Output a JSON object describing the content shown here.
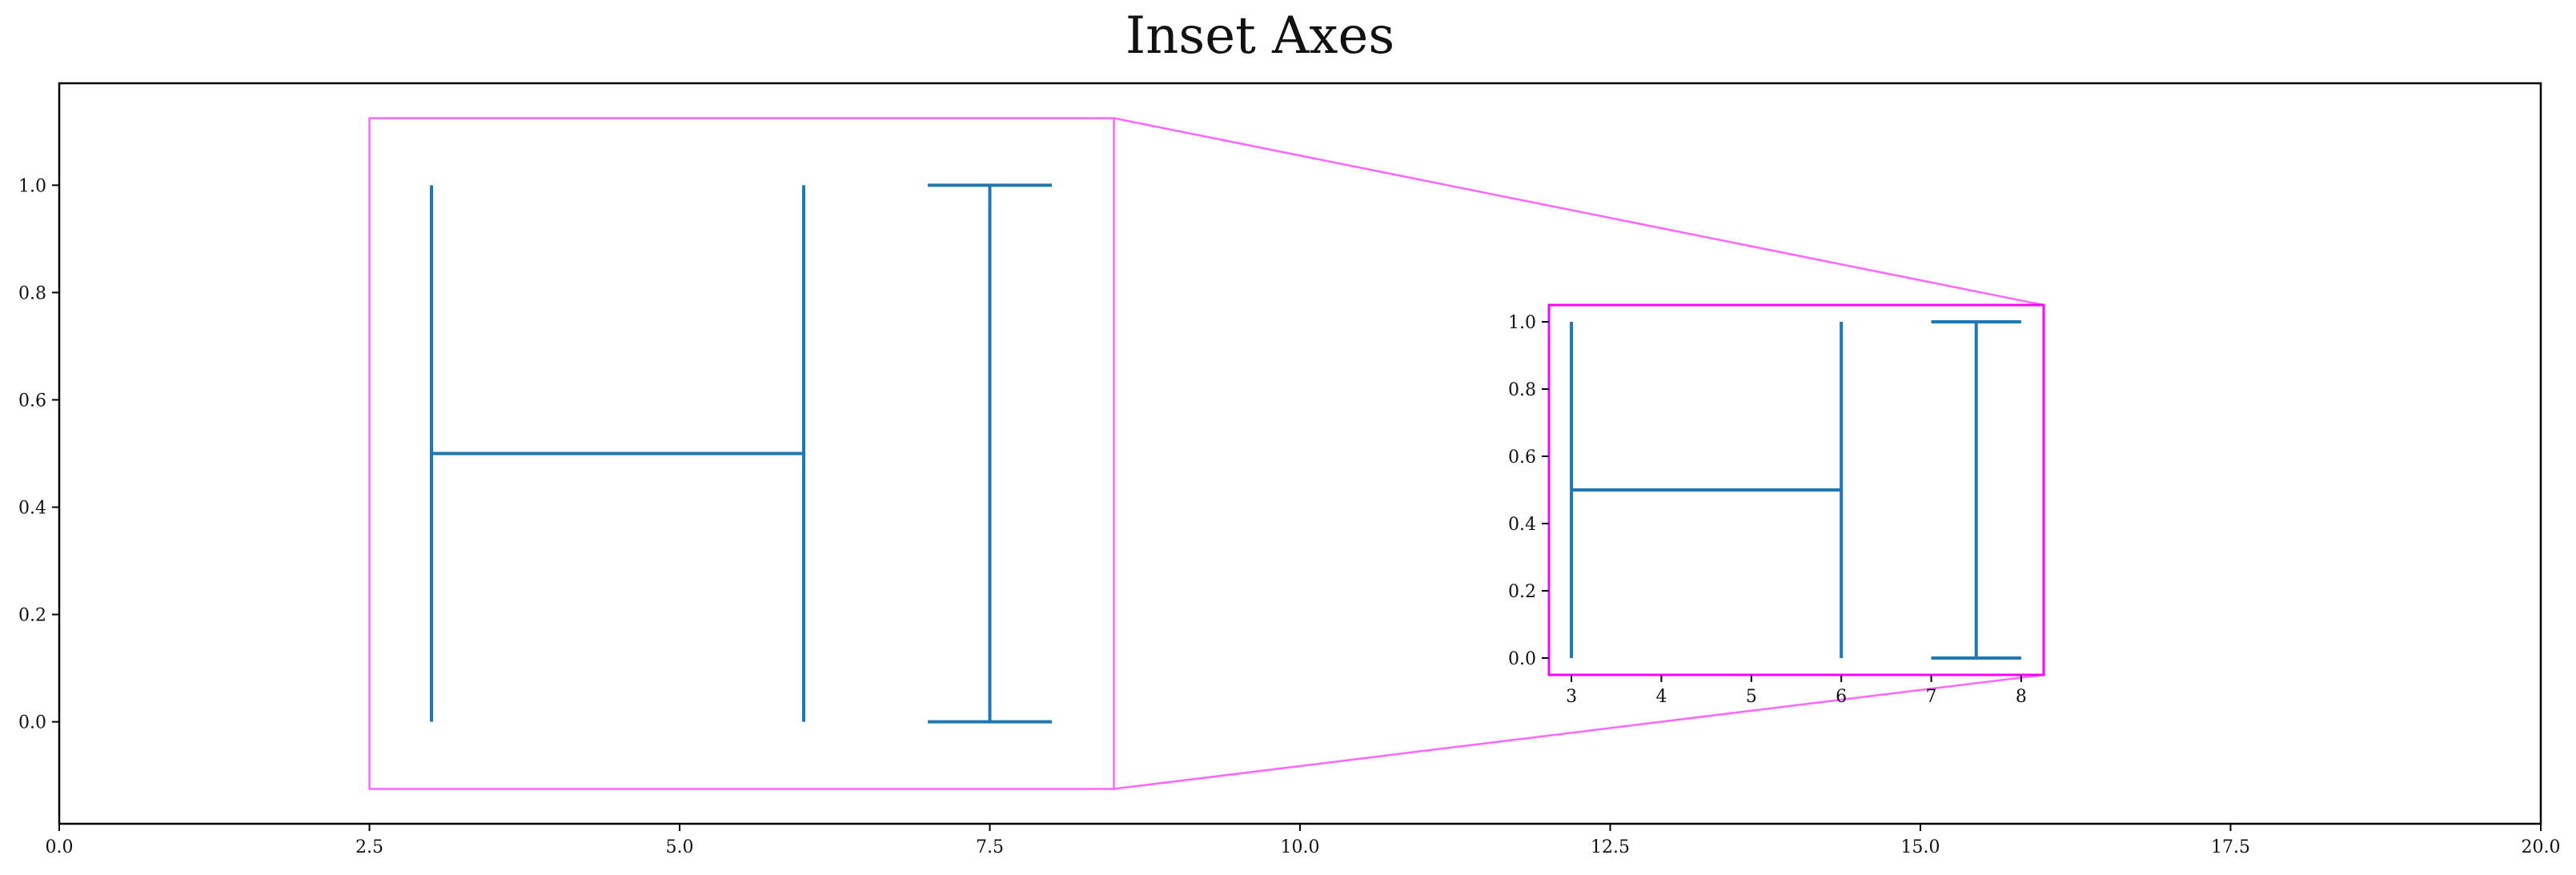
{
  "chart_data": {
    "type": "line",
    "title": "Inset Axes",
    "series": [
      {
        "segments": [
          {
            "x": [
              3,
              3
            ],
            "y": [
              0,
              1
            ]
          },
          {
            "x": [
              3,
              6
            ],
            "y": [
              0.5,
              0.5
            ]
          },
          {
            "x": [
              6,
              6
            ],
            "y": [
              0,
              1
            ]
          },
          {
            "x": [
              7,
              8
            ],
            "y": [
              1,
              1
            ]
          },
          {
            "x": [
              7.5,
              7.5
            ],
            "y": [
              0,
              1
            ]
          },
          {
            "x": [
              7,
              8
            ],
            "y": [
              0,
              0
            ]
          }
        ]
      }
    ],
    "main_axes": {
      "xlim": [
        0,
        20
      ],
      "ylim": [
        -0.19,
        1.19
      ],
      "xticks": [
        0,
        2.5,
        5,
        7.5,
        10,
        12.5,
        15,
        17.5,
        20
      ],
      "xtick_labels": [
        "0.0",
        "2.5",
        "5.0",
        "7.5",
        "10.0",
        "12.5",
        "15.0",
        "17.5",
        "20.0"
      ],
      "yticks": [
        0,
        0.2,
        0.4,
        0.6,
        0.8,
        1.0
      ],
      "ytick_labels": [
        "0.0",
        "0.2",
        "0.4",
        "0.6",
        "0.8",
        "1.0"
      ]
    },
    "zoom_region": {
      "xlim": [
        2.5,
        8.5
      ],
      "ylim": [
        -0.125,
        1.125
      ]
    },
    "inset_axes": {
      "xlim": [
        2.75,
        8.25
      ],
      "ylim": [
        -0.05,
        1.05
      ],
      "xticks": [
        3,
        4,
        5,
        6,
        7,
        8
      ],
      "xtick_labels": [
        "3",
        "4",
        "5",
        "6",
        "7",
        "8"
      ],
      "yticks": [
        0,
        0.2,
        0.4,
        0.6,
        0.8,
        1.0
      ],
      "ytick_labels": [
        "0.0",
        "0.2",
        "0.4",
        "0.6",
        "0.8",
        "1.0"
      ]
    },
    "colors": {
      "series": "#1f77b4",
      "zoom_indicator": "#ff66ff",
      "inset_frame": "#ff00ff"
    },
    "grid": false
  }
}
